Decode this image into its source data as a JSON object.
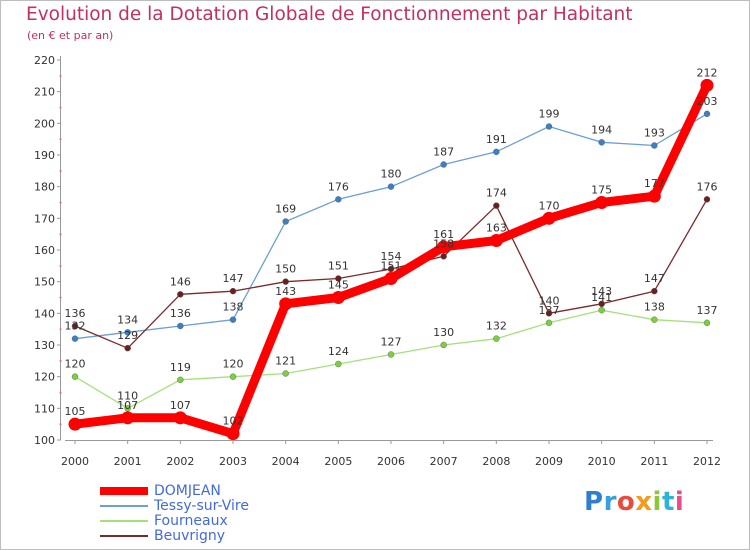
{
  "title": "Evolution de la Dotation Globale de Fonctionnement par Habitant",
  "subtitle": "(en € et par an)",
  "logo": {
    "text": "Proxiti",
    "letters": [
      {
        "ch": "P",
        "color": "#2f7fd1"
      },
      {
        "ch": "r",
        "color": "#35a1de"
      },
      {
        "ch": "o",
        "color": "#e74c3c"
      },
      {
        "ch": "x",
        "color": "#f29b1d"
      },
      {
        "ch": "i",
        "color": "#8dc63f"
      },
      {
        "ch": "t",
        "color": "#2fb2d8"
      },
      {
        "ch": "i",
        "color": "#e84c8b"
      }
    ]
  },
  "chart_data": {
    "type": "line",
    "title": "Evolution de la Dotation Globale de Fonctionnement par Habitant",
    "subtitle": "(en € et par an)",
    "x": [
      "2000",
      "2001",
      "2002",
      "2003",
      "2004",
      "2005",
      "2006",
      "2007",
      "2008",
      "2009",
      "2010",
      "2011",
      "2012"
    ],
    "ylim": [
      100,
      220
    ],
    "yticks": [
      100,
      110,
      120,
      130,
      140,
      150,
      160,
      170,
      180,
      190,
      200,
      210,
      220
    ],
    "grid": "none",
    "legend_position": "bottom-left",
    "series": [
      {
        "name": "DOMJEAN",
        "color": "#ff0000",
        "values": [
          105,
          107,
          107,
          102,
          143,
          145,
          151,
          161,
          163,
          170,
          175,
          177,
          212
        ],
        "labels": [
          "105",
          "107",
          "107",
          "102",
          "143",
          "145",
          "151",
          "161",
          "163",
          "170",
          "175",
          "177",
          "212"
        ]
      },
      {
        "name": "Tessy-sur-Vire",
        "color": "#6a9fd8",
        "values": [
          132,
          134,
          136,
          138,
          169,
          176,
          180,
          187,
          191,
          199,
          194,
          193,
          203
        ],
        "labels": [
          "132",
          "134",
          "136",
          "138",
          "169",
          "176",
          "180",
          "187",
          "191",
          "199",
          "194",
          "193",
          "203"
        ]
      },
      {
        "name": "Fourneaux",
        "color": "#a6e07a",
        "values": [
          120,
          110,
          119,
          120,
          121,
          124,
          127,
          130,
          132,
          137,
          141,
          138,
          137
        ],
        "labels": [
          "120",
          "110",
          "119",
          "120",
          "121",
          "124",
          "127",
          "130",
          "132",
          "137",
          "141",
          "138",
          "137"
        ]
      },
      {
        "name": "Beuvrigny",
        "color": "#7a2a2a",
        "values": [
          136,
          129,
          146,
          147,
          150,
          151,
          154,
          158,
          174,
          140,
          143,
          147,
          176
        ],
        "labels": [
          "136",
          "129",
          "146",
          "147",
          "150",
          "151",
          "154",
          "158",
          "174",
          "140",
          "143",
          "147",
          "176"
        ]
      }
    ]
  }
}
